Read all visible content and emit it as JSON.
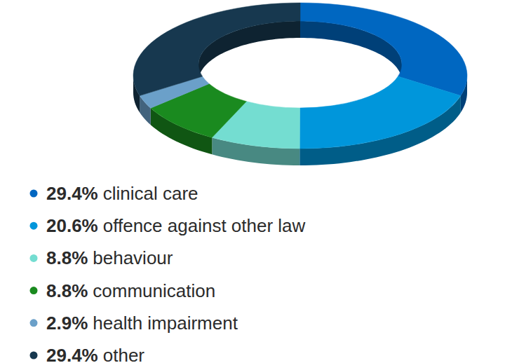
{
  "chart_data": {
    "type": "donut",
    "categories": [
      "clinical care",
      "offence against other law",
      "behaviour",
      "communication",
      "health impairment",
      "other"
    ],
    "values": [
      29.4,
      20.6,
      8.8,
      8.8,
      2.9,
      29.4
    ],
    "value_labels": [
      "29.4%",
      "20.6%",
      "8.8%",
      "8.8%",
      "2.9%",
      "29.4%"
    ],
    "colors": [
      "#0067c1",
      "#0096db",
      "#74ddd1",
      "#1a8a1f",
      "#6ba0c9",
      "#17384f"
    ],
    "legend": "bottom"
  }
}
